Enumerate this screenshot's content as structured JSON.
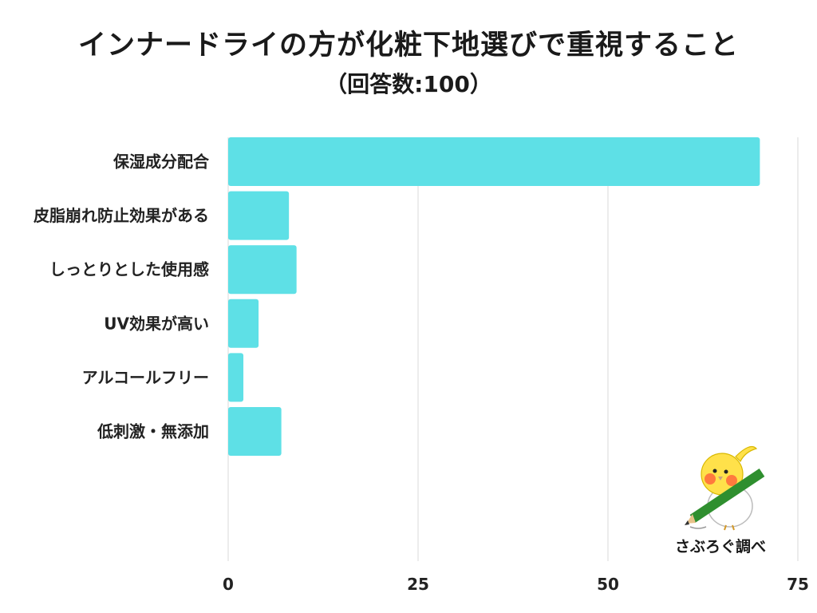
{
  "title": "インナードライの方が化粧下地選びで重視すること",
  "subtitle": "（回答数:100）",
  "brand": "さぶろぐ調べ",
  "colors": {
    "bar": "#5ee0e6",
    "grid": "#d9d9d9",
    "text": "#222222"
  },
  "chart_data": {
    "type": "bar",
    "orientation": "horizontal",
    "categories": [
      "保湿成分配合",
      "皮脂崩れ防止効果がある",
      "しっとりとした使用感",
      "UV効果が高い",
      "アルコールフリー",
      "低刺激・無添加"
    ],
    "values": [
      70,
      8,
      9,
      4,
      2,
      7
    ],
    "xlim": [
      0,
      75
    ],
    "xticks": [
      "0",
      "25",
      "50",
      "75"
    ],
    "grid": true
  }
}
